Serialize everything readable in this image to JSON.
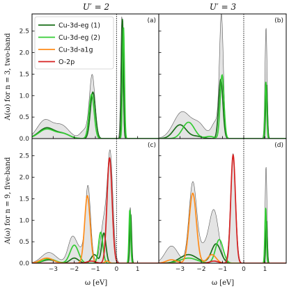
{
  "column_titles": [
    "U′ = 2",
    "U′ = 3"
  ],
  "row_ylabels": [
    "A(ω) for n = 3, two-band",
    "A(ω) for n = 9, five-band"
  ],
  "xlabel": "ω [eV]",
  "legend": [
    {
      "label": "Cu-3d-eg (1)",
      "color": "#1a6f1a"
    },
    {
      "label": "Cu-3d-eg (2)",
      "color": "#33cc33"
    },
    {
      "label": "Cu-3d-a1g",
      "color": "#ff8c1a"
    },
    {
      "label": "O-2p",
      "color": "#d62020"
    }
  ],
  "chart_data": [
    {
      "panel": "(a)",
      "type": "line",
      "xlim": [
        -4.0,
        2.0
      ],
      "ylim": [
        0,
        2.9
      ],
      "xticks": [
        -3,
        -2,
        -1,
        0,
        1
      ],
      "yticks": [
        0.0,
        0.5,
        1.0,
        1.5,
        2.0,
        2.5
      ],
      "fermi_level": 0,
      "total_peaks": [
        [
          -3.4,
          0.42,
          0.35
        ],
        [
          -2.6,
          0.3,
          0.35
        ],
        [
          -1.15,
          1.45,
          0.13
        ],
        [
          -1.5,
          0.2,
          0.2
        ],
        [
          0.25,
          2.85,
          0.05
        ]
      ],
      "series": [
        {
          "name": "Cu-3d-eg (1)",
          "peaks": [
            [
              -3.3,
              0.25,
              0.38
            ],
            [
              -2.5,
              0.1,
              0.3
            ],
            [
              -1.12,
              1.08,
              0.12
            ],
            [
              0.28,
              2.8,
              0.045
            ]
          ]
        },
        {
          "name": "Cu-3d-eg (2)",
          "peaks": [
            [
              -3.3,
              0.22,
              0.38
            ],
            [
              -2.5,
              0.1,
              0.3
            ],
            [
              -1.18,
              1.03,
              0.12
            ],
            [
              0.33,
              2.6,
              0.045
            ]
          ]
        }
      ]
    },
    {
      "panel": "(b)",
      "type": "line",
      "xlim": [
        -4.0,
        2.0
      ],
      "ylim": [
        0,
        2.9
      ],
      "xticks": [
        -3,
        -2,
        -1,
        0,
        1
      ],
      "yticks": [
        0.0,
        0.5,
        1.0,
        1.5,
        2.0,
        2.5
      ],
      "fermi_level": 0,
      "total_peaks": [
        [
          -2.9,
          0.62,
          0.4
        ],
        [
          -2.1,
          0.3,
          0.3
        ],
        [
          -1.05,
          2.72,
          0.09
        ],
        [
          -1.3,
          0.4,
          0.2
        ],
        [
          1.05,
          2.58,
          0.05
        ]
      ],
      "series": [
        {
          "name": "Cu-3d-eg (1)",
          "peaks": [
            [
              -3.0,
              0.32,
              0.3
            ],
            [
              -2.2,
              0.05,
              0.25
            ],
            [
              -1.08,
              1.38,
              0.1
            ],
            [
              1.07,
              1.25,
              0.04
            ]
          ]
        },
        {
          "name": "Cu-3d-eg (2)",
          "peaks": [
            [
              -2.6,
              0.38,
              0.28
            ],
            [
              -1.6,
              0.05,
              0.2
            ],
            [
              -1.02,
              1.48,
              0.09
            ],
            [
              1.04,
              1.32,
              0.04
            ]
          ]
        }
      ]
    },
    {
      "panel": "(c)",
      "type": "line",
      "xlim": [
        -4.0,
        2.0
      ],
      "ylim": [
        0,
        2.9
      ],
      "xticks": [
        -3,
        -2,
        -1,
        0,
        1
      ],
      "yticks": [
        0.0,
        0.5,
        1.0,
        1.5,
        2.0,
        2.5
      ],
      "fermi_level": 0,
      "total_peaks": [
        [
          -3.2,
          0.25,
          0.35
        ],
        [
          -2.1,
          0.55,
          0.2
        ],
        [
          -1.35,
          1.6,
          0.12
        ],
        [
          -0.6,
          0.95,
          0.15
        ],
        [
          -0.3,
          2.5,
          0.13
        ],
        [
          -1.6,
          0.3,
          0.3
        ],
        [
          0.65,
          1.3,
          0.05
        ]
      ],
      "series": [
        {
          "name": "Cu-3d-eg (1)",
          "peaks": [
            [
              -3.2,
              0.08,
              0.3
            ],
            [
              -2.0,
              0.12,
              0.2
            ],
            [
              -1.05,
              0.2,
              0.15
            ],
            [
              -0.6,
              0.7,
              0.1
            ],
            [
              0.67,
              1.15,
              0.04
            ]
          ]
        },
        {
          "name": "Cu-3d-eg (2)",
          "peaks": [
            [
              -3.2,
              0.1,
              0.3
            ],
            [
              -2.0,
              0.42,
              0.2
            ],
            [
              -0.75,
              0.72,
              0.1
            ],
            [
              0.63,
              1.25,
              0.04
            ]
          ]
        },
        {
          "name": "Cu-3d-a1g",
          "peaks": [
            [
              -3.3,
              0.12,
              0.3
            ],
            [
              -1.38,
              1.57,
              0.13
            ],
            [
              -0.45,
              0.05,
              0.1
            ]
          ]
        },
        {
          "name": "O-2p",
          "peaks": [
            [
              -0.33,
              2.45,
              0.12
            ],
            [
              -1.2,
              0.05,
              0.2
            ]
          ]
        }
      ]
    },
    {
      "panel": "(d)",
      "type": "line",
      "xlim": [
        -4.0,
        2.0
      ],
      "ylim": [
        0,
        2.9
      ],
      "xticks": [
        -3,
        -2,
        -1,
        0,
        1
      ],
      "yticks": [
        0.0,
        0.5,
        1.0,
        1.5,
        2.0,
        2.5
      ],
      "fermi_level": 0,
      "total_peaks": [
        [
          -3.4,
          0.4,
          0.3
        ],
        [
          -2.4,
          1.85,
          0.18
        ],
        [
          -1.4,
          1.2,
          0.22
        ],
        [
          -0.5,
          2.55,
          0.12
        ],
        [
          -1.9,
          0.35,
          0.25
        ],
        [
          1.05,
          2.25,
          0.045
        ]
      ],
      "series": [
        {
          "name": "Cu-3d-eg (1)",
          "peaks": [
            [
              -2.6,
              0.2,
              0.4
            ],
            [
              -1.3,
              0.45,
              0.22
            ],
            [
              1.07,
              0.98,
              0.035
            ]
          ]
        },
        {
          "name": "Cu-3d-eg (2)",
          "peaks": [
            [
              -2.6,
              0.12,
              0.4
            ],
            [
              -1.15,
              0.55,
              0.18
            ],
            [
              1.03,
              1.3,
              0.035
            ]
          ]
        },
        {
          "name": "Cu-3d-a1g",
          "peaks": [
            [
              -3.4,
              0.08,
              0.25
            ],
            [
              -2.4,
              1.63,
              0.17
            ],
            [
              -1.5,
              0.2,
              0.2
            ]
          ]
        },
        {
          "name": "O-2p",
          "peaks": [
            [
              -0.5,
              2.52,
              0.11
            ],
            [
              -1.4,
              0.05,
              0.2
            ]
          ]
        }
      ]
    }
  ]
}
